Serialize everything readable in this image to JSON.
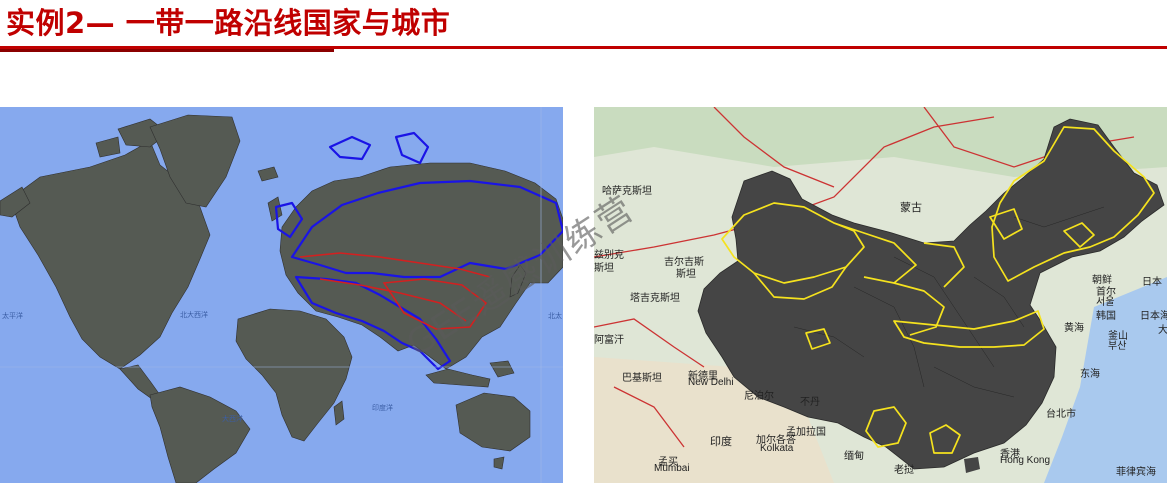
{
  "page": {
    "title": "实例2— 一带一路沿线国家与城市",
    "accent_color": "#c00000",
    "watermark": "GEE遥感训练营"
  },
  "left_map": {
    "ocean_color": "#86a9ee",
    "land_color": "#555a53",
    "highlight_color": "#1a14e6",
    "route_color": "#d32020",
    "labels": {
      "pacific_west": "太平洋",
      "north_atlantic": "北大西洋",
      "atlantic": "大西洋",
      "indian_ocean": "印度洋",
      "north_pacific": "北太"
    }
  },
  "right_map": {
    "base_color": "#dfe6d6",
    "region_color": "#454545",
    "boundary_color": "#f5e21e",
    "road_color": "#cc3333",
    "labels": {
      "kazakhstan": "哈萨克斯坦",
      "mongolia": "蒙古",
      "uzbekistan": "兹别克",
      "uzbekistan_2": "斯坦",
      "kyrgyzstan": "吉尔吉斯",
      "kyrgyzstan_2": "斯坦",
      "tajikistan": "塔吉克斯坦",
      "afghanistan": "阿富汗",
      "pakistan": "巴基斯坦",
      "new_delhi_cn": "新德里",
      "new_delhi": "New Delhi",
      "nepal": "尼泊尔",
      "bhutan": "不丹",
      "india": "印度",
      "kolkata_cn": "加尔各答",
      "kolkata": "Kolkata",
      "bangladesh": "孟加拉国",
      "mumbai_cn": "孟买",
      "mumbai": "Mumbai",
      "myanmar": "缅甸",
      "laos": "老挝",
      "north_korea": "朝鲜",
      "seoul_cn": "首尔",
      "seoul": "서울",
      "south_korea": "韩国",
      "busan_cn": "釜山",
      "busan": "부산",
      "yellow_sea": "黄海",
      "east_sea": "东海",
      "japan": "日本",
      "japan_sea": "日本海",
      "taipei": "台北市",
      "hong_kong_cn": "香港",
      "hong_kong": "Hong Kong",
      "philippine_sea": "菲律宾海",
      "osaka": "大"
    }
  }
}
